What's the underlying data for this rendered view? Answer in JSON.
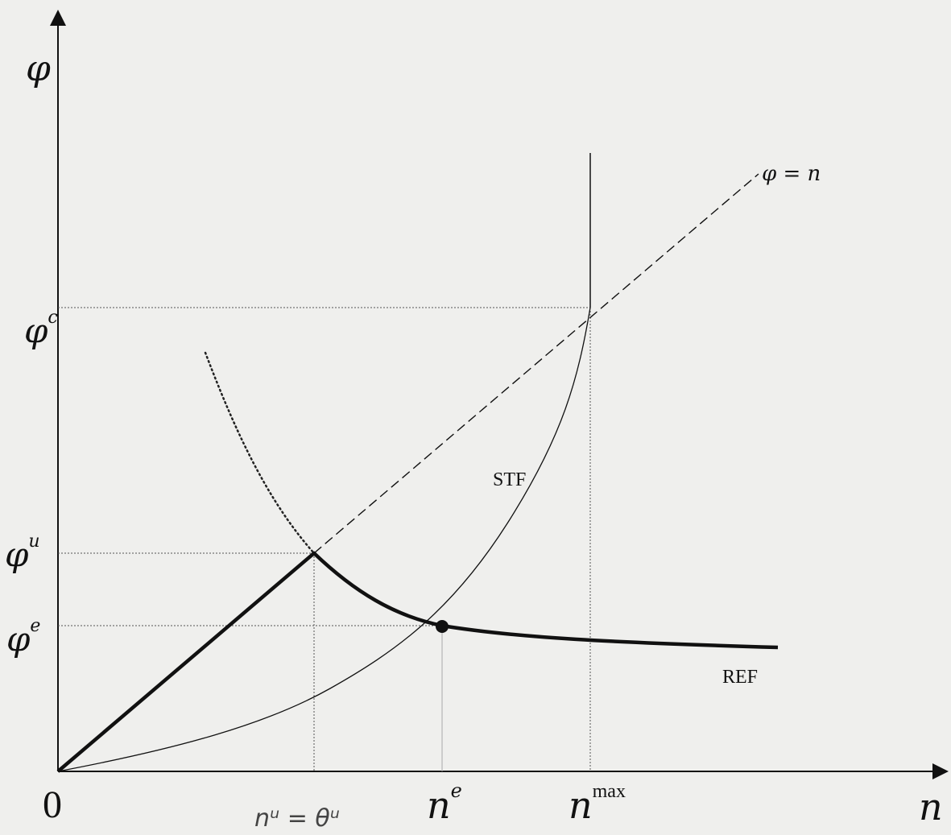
{
  "axes": {
    "y_label": "φ",
    "x_label": "n",
    "origin_label": "0"
  },
  "y_ticks": {
    "phi_c": {
      "base": "φ",
      "sup": "c"
    },
    "phi_u": {
      "base": "φ",
      "sup": "u"
    },
    "phi_e": {
      "base": "φ",
      "sup": "e"
    }
  },
  "x_ticks": {
    "n_u_handwritten": "nᵘ = θᵘ",
    "n_e": {
      "base": "n",
      "sup": "e"
    },
    "n_max": {
      "base": "n",
      "sup": "max"
    }
  },
  "curve_labels": {
    "diagonal": "φ = n",
    "stf": "STF",
    "ref": "REF"
  },
  "colors": {
    "ink": "#111111",
    "background": "#efefed",
    "guide": "#555555"
  }
}
